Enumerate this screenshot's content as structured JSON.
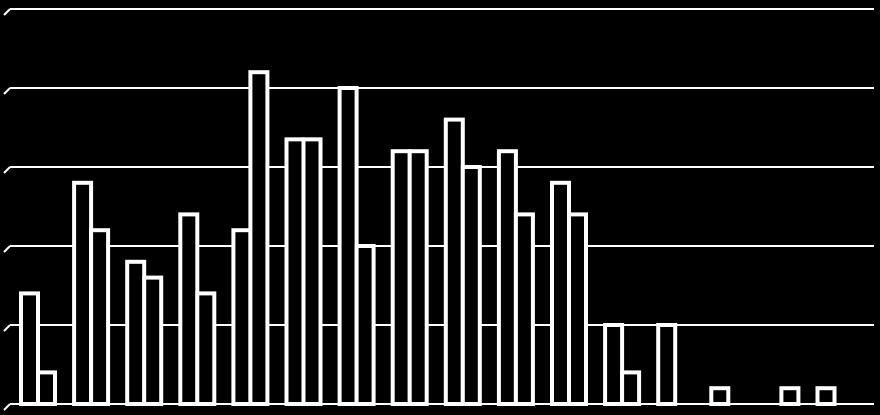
{
  "chart_data": {
    "type": "bar",
    "title": "",
    "xlabel": "",
    "ylabel": "",
    "ylim": [
      0,
      10
    ],
    "grid": true,
    "yticks": [
      0,
      2,
      4,
      6,
      8,
      10
    ],
    "categories": [
      "",
      "",
      "",
      "",
      "",
      "",
      "",
      "",
      "",
      "",
      "",
      "",
      "",
      "",
      "",
      ""
    ],
    "series": [
      {
        "values": [
          2.8,
          5.6,
          3.6,
          4.8,
          4.4,
          6.7,
          8.0,
          6.4,
          7.2,
          6.4,
          5.6,
          2.0,
          2.0,
          0.4,
          0.0,
          0.4
        ]
      },
      {
        "values": [
          0.8,
          4.4,
          3.2,
          2.8,
          8.4,
          6.7,
          4.0,
          6.4,
          6.0,
          4.8,
          4.8,
          0.8,
          0.0,
          0.0,
          0.4,
          0.0
        ]
      }
    ],
    "colors": {
      "background": "#000000",
      "bar": "#000000",
      "bar_stroke": "#ffffff",
      "grid": "#ffffff"
    }
  }
}
